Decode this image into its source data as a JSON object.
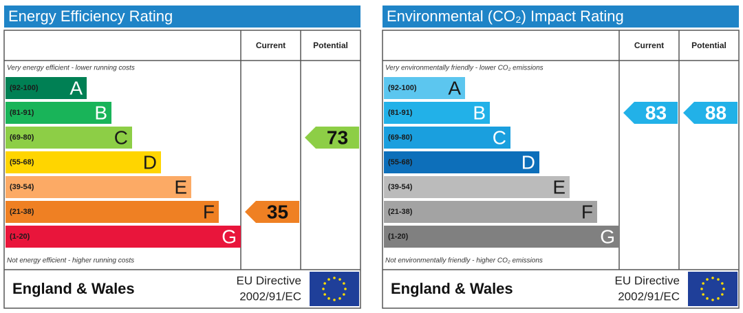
{
  "panels": [
    {
      "title": "Energy Efficiency Rating",
      "columns": [
        "Current",
        "Potential"
      ],
      "top_note": "Very energy efficient - lower running costs",
      "bottom_note": "Not energy efficient - higher running costs",
      "bands": [
        {
          "range": "(92-100)",
          "letter": "A",
          "color": "#008054"
        },
        {
          "range": "(81-91)",
          "letter": "B",
          "color": "#19b459"
        },
        {
          "range": "(69-80)",
          "letter": "C",
          "color": "#8dce46"
        },
        {
          "range": "(55-68)",
          "letter": "D",
          "color": "#ffd500"
        },
        {
          "range": "(39-54)",
          "letter": "E",
          "color": "#fcaa65"
        },
        {
          "range": "(21-38)",
          "letter": "F",
          "color": "#ef8023"
        },
        {
          "range": "(1-20)",
          "letter": "G",
          "color": "#e9153b"
        }
      ],
      "current": 35,
      "potential": 73,
      "footer": {
        "region": "England & Wales",
        "directive": [
          "EU Directive",
          "2002/91/EC"
        ]
      }
    },
    {
      "title": "Environmental (CO₂) Impact Rating",
      "columns": [
        "Current",
        "Potential"
      ],
      "top_note": "Very environmentally friendly - lower CO₂ emissions",
      "bottom_note": "Not environmentally friendly - higher CO₂ emissions",
      "bands": [
        {
          "range": "(92-100)",
          "letter": "A",
          "color": "#5cc6ef"
        },
        {
          "range": "(81-91)",
          "letter": "B",
          "color": "#22b1e8"
        },
        {
          "range": "(69-80)",
          "letter": "C",
          "color": "#1a9fde"
        },
        {
          "range": "(55-68)",
          "letter": "D",
          "color": "#0d6fba"
        },
        {
          "range": "(39-54)",
          "letter": "E",
          "color": "#bbbbbb"
        },
        {
          "range": "(21-38)",
          "letter": "F",
          "color": "#a3a3a3"
        },
        {
          "range": "(1-20)",
          "letter": "G",
          "color": "#808080"
        }
      ],
      "current": 83,
      "potential": 88,
      "footer": {
        "region": "England & Wales",
        "directive": [
          "EU Directive",
          "2002/91/EC"
        ]
      }
    }
  ]
}
